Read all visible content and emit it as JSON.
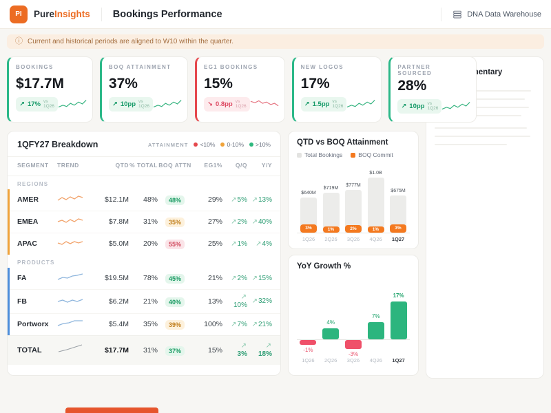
{
  "header": {
    "logo_text": "PI",
    "brand_first": "Pure",
    "brand_second": "Insights",
    "title": "Bookings Performance",
    "datasource_label": "DNA Data Warehouse"
  },
  "notice": {
    "text": "Current and historical periods are aligned to W10 within the quarter."
  },
  "glyphs": {
    "up": "↗",
    "down": "↘"
  },
  "colors": {
    "brand": "#ec6c23",
    "positive": "#169a68",
    "negative": "#dd4861",
    "amber": "#c07e1b"
  },
  "kpis": [
    {
      "label": "BOOKINGS",
      "value": "$17.7M",
      "arrow": "↗",
      "delta": "17%",
      "vs": "vs",
      "period": "1Q26",
      "tone": "green"
    },
    {
      "label": "BOQ ATTAINMENT",
      "value": "37%",
      "arrow": "↗",
      "delta": "10pp",
      "vs": "vs",
      "period": "1Q26",
      "tone": "green"
    },
    {
      "label": "EG1 BOOKINGS",
      "value": "15%",
      "arrow": "↘",
      "delta": "0.8pp",
      "vs": "vs",
      "period": "1Q26",
      "tone": "red"
    },
    {
      "label": "NEW LOGOS",
      "value": "17%",
      "arrow": "↗",
      "delta": "1.5pp",
      "vs": "vs",
      "period": "1Q26",
      "tone": "green"
    },
    {
      "label": "PARTNER SOURCED",
      "value": "28%",
      "arrow": "↗",
      "delta": "10pp",
      "vs": "vs",
      "period": "1Q26",
      "tone": "green"
    }
  ],
  "table": {
    "title": "1QFY27 Breakdown",
    "legend": {
      "caption": "ATTAINMENT",
      "items": [
        {
          "label": "<10%",
          "color": "#e5484d"
        },
        {
          "label": "0-10%",
          "color": "#f0a33a"
        },
        {
          "label": ">10%",
          "color": "#2eb87e"
        }
      ]
    },
    "columns": [
      "SEGMENT",
      "TREND",
      "QTD",
      "% TOTAL",
      "BOQ ATTN",
      "EG1%",
      "Q/Q",
      "Y/Y"
    ],
    "sections": [
      {
        "name": "REGIONS",
        "rows": [
          {
            "segment": "AMER",
            "qtd": "$12.1M",
            "pct_total": "48%",
            "boq": "48%",
            "boq_tone": "green",
            "eg1": "29%",
            "qq": "5%",
            "yy": "13%"
          },
          {
            "segment": "EMEA",
            "qtd": "$7.8M",
            "pct_total": "31%",
            "boq": "35%",
            "boq_tone": "amber",
            "eg1": "27%",
            "qq": "2%",
            "yy": "40%"
          },
          {
            "segment": "APAC",
            "qtd": "$5.0M",
            "pct_total": "20%",
            "boq": "55%",
            "boq_tone": "red",
            "eg1": "25%",
            "qq": "1%",
            "yy": "4%"
          }
        ]
      },
      {
        "name": "PRODUCTS",
        "rows": [
          {
            "segment": "FA",
            "qtd": "$19.5M",
            "pct_total": "78%",
            "boq": "45%",
            "boq_tone": "green",
            "eg1": "21%",
            "qq": "2%",
            "yy": "15%"
          },
          {
            "segment": "FB",
            "qtd": "$6.2M",
            "pct_total": "21%",
            "boq": "40%",
            "boq_tone": "green",
            "eg1": "13%",
            "qq": "10%",
            "yy": "32%"
          },
          {
            "segment": "Portworx",
            "qtd": "$5.4M",
            "pct_total": "35%",
            "boq": "39%",
            "boq_tone": "amber",
            "eg1": "100%",
            "qq": "7%",
            "yy": "21%"
          }
        ]
      }
    ],
    "total": {
      "segment": "TOTAL",
      "qtd": "$17.7M",
      "pct_total": "31%",
      "boq": "37%",
      "boq_tone": "green",
      "eg1": "15%",
      "qq": "3%",
      "yy": "18%"
    }
  },
  "chart_data": [
    {
      "type": "bar",
      "title": "QTD vs BOQ Attainment",
      "legend": [
        {
          "name": "Total Bookings",
          "color": "#ececea"
        },
        {
          "name": "BOQ Commit",
          "color": "#f4791f"
        }
      ],
      "categories": [
        "1Q26",
        "2Q26",
        "3Q26",
        "4Q26",
        "1Q27"
      ],
      "ylim": [
        0,
        1000
      ],
      "series": [
        {
          "name": "Total Bookings",
          "values_musd": [
            640,
            719,
            777,
            1000,
            675
          ],
          "labels": [
            "$640M",
            "$719M",
            "$777M",
            "$1.0B",
            "$675M"
          ]
        },
        {
          "name": "BOQ Commit",
          "values": [
            3,
            1,
            2,
            1,
            3
          ],
          "labels": [
            "3%",
            "1%",
            "2%",
            "1%",
            "3%"
          ]
        }
      ]
    },
    {
      "type": "bar",
      "title": "YoY Growth %",
      "categories": [
        "1Q26",
        "2Q26",
        "3Q26",
        "4Q26",
        "1Q27"
      ],
      "values": [
        -1,
        4,
        -3,
        7,
        17
      ],
      "labels": [
        "-1%",
        "4%",
        "-3%",
        "7%",
        "17%"
      ],
      "colors": {
        "positive": "#2cb57e",
        "negative": "#ef5069"
      }
    }
  ],
  "commentary": {
    "title": "Commentary"
  }
}
